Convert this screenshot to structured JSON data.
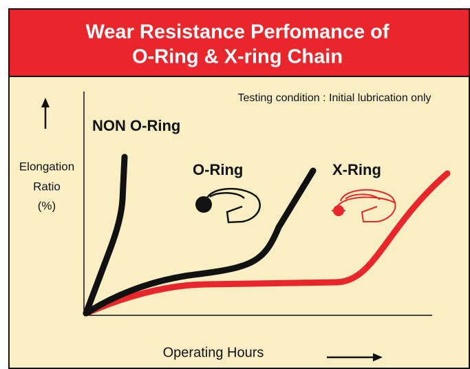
{
  "header": {
    "title_line1": "Wear Resistance Perfomance of",
    "title_line2": "O-Ring & X-ring Chain"
  },
  "note": "Testing condition : Initial lubrication only",
  "curve_labels": {
    "non_o_ring": "NON O-Ring",
    "o_ring": "O-Ring",
    "x_ring": "X-Ring"
  },
  "y_axis_label": {
    "line1": "Elongation",
    "line2": "Ratio",
    "line3": "(%)"
  },
  "x_axis_label": "Operating Hours"
}
